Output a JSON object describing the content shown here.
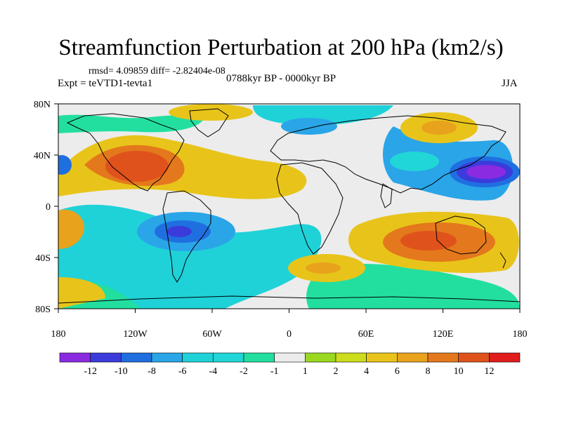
{
  "title": "Streamfunction Perturbation at 200 hPa (km2/s)",
  "stats": "rmsd= 4.09859 diff= -2.82404e-08",
  "experiment": "Expt = teVTD1-tevta1",
  "period": "0788kyr BP - 0000kyr BP",
  "season": "JJA",
  "map": {
    "x_ticks": [
      "180",
      "120W",
      "60W",
      "0",
      "60E",
      "120E",
      "180"
    ],
    "y_ticks": [
      "80N",
      "40N",
      "0",
      "40S",
      "80S"
    ],
    "colors": {
      "n12": "#8a2be2",
      "n10": "#3b3bdc",
      "n8": "#1f6fe0",
      "n6": "#2aa5e8",
      "n4": "#1fd2d8",
      "n2": "#22dfa0",
      "neutral": "#ececec",
      "p1": "#9ad81f",
      "p2": "#cddc1c",
      "p4": "#e8c41a",
      "p6": "#e8a21c",
      "p8": "#e4781c",
      "p10": "#e0521c",
      "p12": "#e01c1c",
      "ocean": "#ffffff",
      "coast": "#000000"
    }
  },
  "colorbar": {
    "labels": [
      "-12",
      "-10",
      "-8",
      "-6",
      "-4",
      "-2",
      "-1",
      "1",
      "2",
      "4",
      "6",
      "8",
      "10",
      "12"
    ],
    "colors": [
      "#8a2be2",
      "#3b3bdc",
      "#1f6fe0",
      "#2aa5e8",
      "#1fd2d8",
      "#20d6d6",
      "#22dfa0",
      "#ececec",
      "#9ad81f",
      "#cddc1c",
      "#e8c41a",
      "#e8a21c",
      "#e4781c",
      "#e0521c",
      "#e01c1c"
    ]
  }
}
